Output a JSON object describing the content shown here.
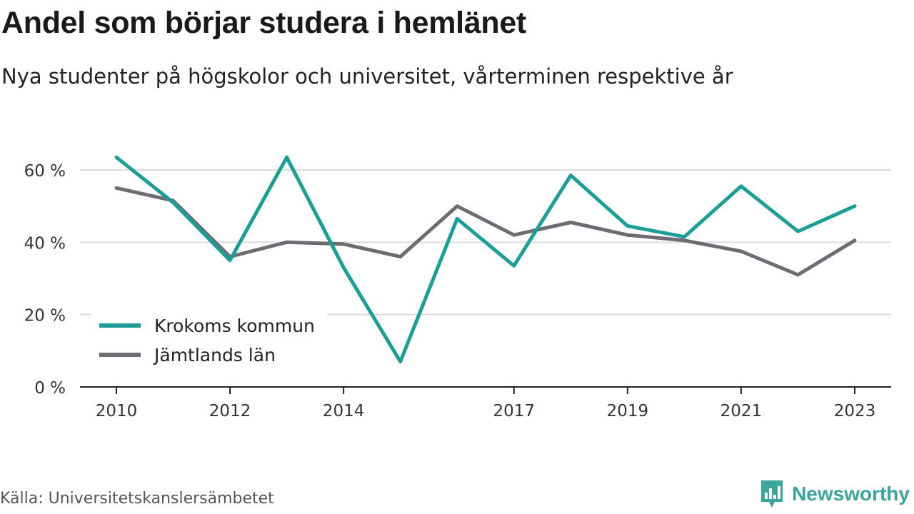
{
  "header": {
    "title": "Andel som börjar studera i hemlänet",
    "subtitle": "Nya studenter på högskolor och universitet, vårterminen respektive år"
  },
  "footer": {
    "source": "Källa: Universitetskanslersämbetet",
    "brand": "Newsworthy",
    "brand_icon": "newsworthy-logo-icon",
    "brand_color": "#3aa59a"
  },
  "chart_data": {
    "type": "line",
    "x": [
      2010,
      2011,
      2012,
      2013,
      2014,
      2015,
      2016,
      2017,
      2018,
      2019,
      2020,
      2021,
      2022,
      2023
    ],
    "x_tick_labels": [
      "2010",
      "2012",
      "2014",
      "2017",
      "2019",
      "2021",
      "2023"
    ],
    "x_ticks": [
      2010,
      2012,
      2014,
      2017,
      2019,
      2021,
      2023
    ],
    "y_ticks": [
      0,
      20,
      40,
      60
    ],
    "y_tick_labels": [
      "0 %",
      "20 %",
      "40 %",
      "60 %"
    ],
    "ylim": [
      0,
      70
    ],
    "grid": true,
    "legend_position": "bottom-left",
    "series": [
      {
        "name": "Krokoms kommun",
        "color": "#1a9e96",
        "values": [
          63.5,
          51,
          35,
          63.5,
          33,
          7,
          46.5,
          33.5,
          58.5,
          44.5,
          41.5,
          55.5,
          43,
          50
        ]
      },
      {
        "name": "Jämtlands län",
        "color": "#6e6b73",
        "values": [
          55,
          51.5,
          36,
          40,
          39.5,
          36,
          50,
          42,
          45.5,
          42,
          40.5,
          37.5,
          31,
          40.5
        ]
      }
    ]
  }
}
